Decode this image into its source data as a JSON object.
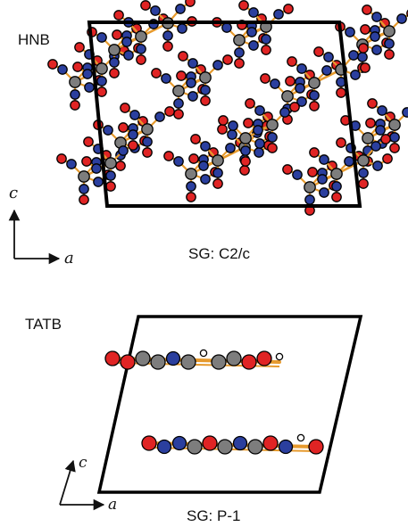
{
  "panels": {
    "hnb": {
      "name": "HNB",
      "space_group": "SG: C2/c",
      "axis_vertical": "c",
      "axis_horizontal": "a"
    },
    "tatb": {
      "name": "TATB",
      "space_group": "SG: P-1",
      "axis_vertical": "c",
      "axis_horizontal": "a"
    }
  },
  "colors": {
    "oxygen": "#e02424",
    "nitrogen": "#2b3f9e",
    "carbon": "#7d7d7d",
    "hydrogen": "#ffffff",
    "bond": "#e69a2e",
    "cell": "#000000"
  }
}
